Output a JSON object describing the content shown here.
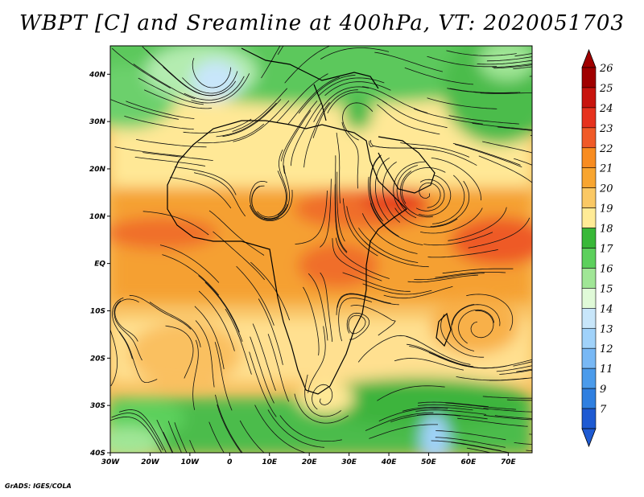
{
  "title": "WBPT [C] and Sreamline at 400hPa, VT: 2020051703",
  "footer": "GrADS: IGES/COLA",
  "map": {
    "lon_range": [
      -30,
      76
    ],
    "lat_range": [
      -40,
      46
    ],
    "lon_ticks": [
      {
        "value": -30,
        "label": "30W"
      },
      {
        "value": -20,
        "label": "20W"
      },
      {
        "value": -10,
        "label": "10W"
      },
      {
        "value": 0,
        "label": "0"
      },
      {
        "value": 10,
        "label": "10E"
      },
      {
        "value": 20,
        "label": "20E"
      },
      {
        "value": 30,
        "label": "30E"
      },
      {
        "value": 40,
        "label": "40E"
      },
      {
        "value": 50,
        "label": "50E"
      },
      {
        "value": 60,
        "label": "60E"
      },
      {
        "value": 70,
        "label": "70E"
      }
    ],
    "lat_ticks": [
      {
        "value": 40,
        "label": "40N"
      },
      {
        "value": 30,
        "label": "30N"
      },
      {
        "value": 20,
        "label": "20N"
      },
      {
        "value": 10,
        "label": "10N"
      },
      {
        "value": 0,
        "label": "EQ"
      },
      {
        "value": -10,
        "label": "10S"
      },
      {
        "value": -20,
        "label": "20S"
      },
      {
        "value": -30,
        "label": "30S"
      },
      {
        "value": -40,
        "label": "40S"
      }
    ]
  },
  "colorbar": {
    "levels": [
      {
        "label": "26",
        "color": "#a00000"
      },
      {
        "label": "25",
        "color": "#c8140e"
      },
      {
        "label": "24",
        "color": "#e6321e"
      },
      {
        "label": "23",
        "color": "#f05a28"
      },
      {
        "label": "22",
        "color": "#f88c20"
      },
      {
        "label": "21",
        "color": "#f8a530"
      },
      {
        "label": "20",
        "color": "#fac864"
      },
      {
        "label": "19",
        "color": "#ffeb96"
      },
      {
        "label": "18",
        "color": "#38b838"
      },
      {
        "label": "17",
        "color": "#5cd05c"
      },
      {
        "label": "16",
        "color": "#a0e696"
      },
      {
        "label": "15",
        "color": "#e0fad8"
      },
      {
        "label": "14",
        "color": "#c8e6fa"
      },
      {
        "label": "13",
        "color": "#a0d2fa"
      },
      {
        "label": "12",
        "color": "#78b8f5"
      },
      {
        "label": "11",
        "color": "#4b9beb"
      },
      {
        "label": "9",
        "color": "#2f7fe0"
      },
      {
        "label": "7",
        "color": "#1e5ad2"
      }
    ],
    "top_color": "#a00000",
    "bottom_color": "#1e5ad2"
  }
}
